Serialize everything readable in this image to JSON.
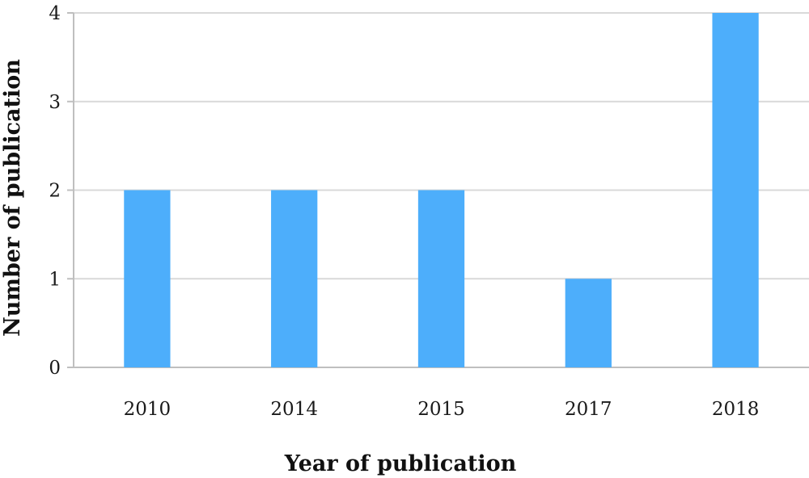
{
  "chart_data": {
    "type": "bar",
    "categories": [
      "2010",
      "2014",
      "2015",
      "2017",
      "2018"
    ],
    "values": [
      2,
      2,
      2,
      1,
      4
    ],
    "xlabel": "Year of publication",
    "ylabel": "Number of publication",
    "ylim": [
      0,
      4
    ],
    "yticks": [
      "0",
      "1",
      "2",
      "3",
      "4"
    ],
    "grid": true,
    "colors": {
      "bar": "#4daefb",
      "grid": "#d9d9d9",
      "axis": "#bfbfbf"
    }
  }
}
